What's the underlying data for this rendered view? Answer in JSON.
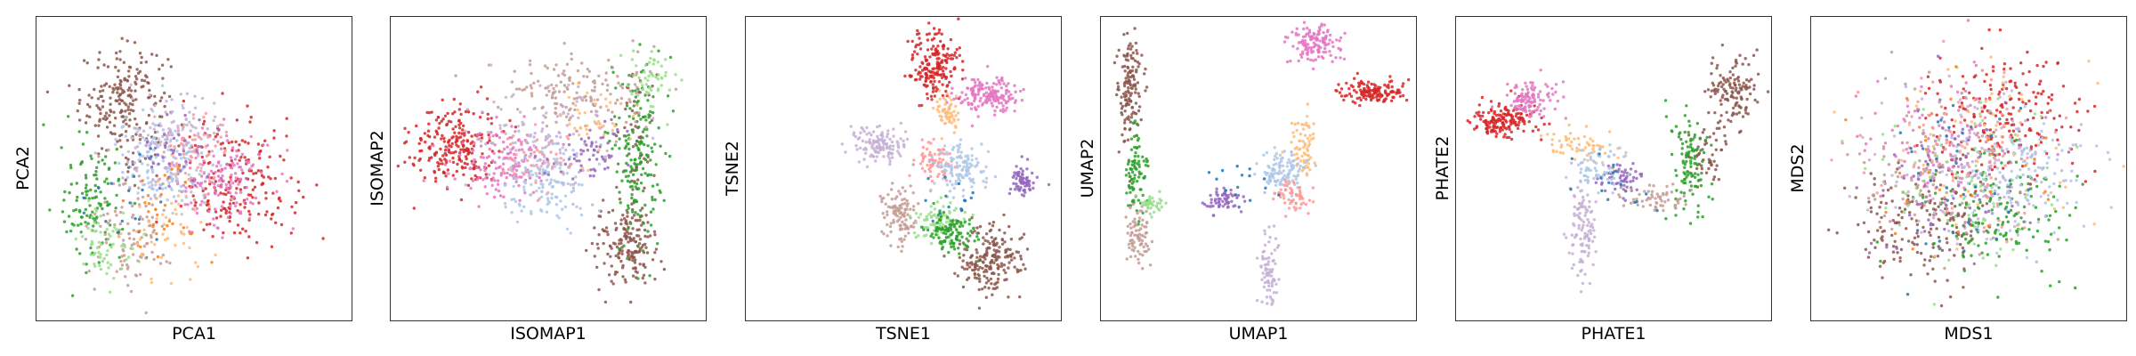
{
  "palette": {
    "c0": "#1f77b4",
    "c1": "#aec7e8",
    "c2": "#ff7f0e",
    "c3": "#ffbb78",
    "c4": "#2ca02c",
    "c5": "#98df8a",
    "c6": "#d62728",
    "c7": "#ff9896",
    "c8": "#9467bd",
    "c9": "#c5b0d5",
    "c10": "#8c564b",
    "c11": "#c49c94",
    "c12": "#e377c2"
  },
  "chart_data": [
    {
      "type": "scatter",
      "title": "",
      "xlabel": "PCA1",
      "ylabel": "PCA2",
      "xlim": [
        0,
        1
      ],
      "ylim": [
        0,
        1
      ],
      "grid": false,
      "ticks": false,
      "series": [
        {
          "color": "c10",
          "clusters": [
            {
              "x": 0.28,
              "y": 0.72,
              "sx": 0.07,
              "sy": 0.09,
              "n": 220
            }
          ]
        },
        {
          "color": "c6",
          "clusters": [
            {
              "x": 0.64,
              "y": 0.45,
              "sx": 0.09,
              "sy": 0.1,
              "n": 200
            }
          ]
        },
        {
          "color": "c12",
          "clusters": [
            {
              "x": 0.58,
              "y": 0.47,
              "sx": 0.08,
              "sy": 0.08,
              "n": 150
            }
          ]
        },
        {
          "color": "c1",
          "clusters": [
            {
              "x": 0.4,
              "y": 0.52,
              "sx": 0.07,
              "sy": 0.08,
              "n": 160
            }
          ]
        },
        {
          "color": "c9",
          "clusters": [
            {
              "x": 0.44,
              "y": 0.58,
              "sx": 0.08,
              "sy": 0.09,
              "n": 120
            }
          ]
        },
        {
          "color": "c4",
          "clusters": [
            {
              "x": 0.18,
              "y": 0.38,
              "sx": 0.05,
              "sy": 0.1,
              "n": 120
            }
          ]
        },
        {
          "color": "c11",
          "clusters": [
            {
              "x": 0.3,
              "y": 0.3,
              "sx": 0.06,
              "sy": 0.1,
              "n": 110
            }
          ]
        },
        {
          "color": "c5",
          "clusters": [
            {
              "x": 0.22,
              "y": 0.26,
              "sx": 0.05,
              "sy": 0.07,
              "n": 60
            }
          ]
        },
        {
          "color": "c3",
          "clusters": [
            {
              "x": 0.42,
              "y": 0.3,
              "sx": 0.07,
              "sy": 0.08,
              "n": 50
            }
          ]
        },
        {
          "color": "c7",
          "clusters": [
            {
              "x": 0.5,
              "y": 0.55,
              "sx": 0.06,
              "sy": 0.06,
              "n": 50
            }
          ]
        },
        {
          "color": "c8",
          "clusters": [
            {
              "x": 0.45,
              "y": 0.55,
              "sx": 0.06,
              "sy": 0.06,
              "n": 40
            }
          ]
        },
        {
          "color": "c0",
          "clusters": [
            {
              "x": 0.3,
              "y": 0.4,
              "sx": 0.06,
              "sy": 0.08,
              "n": 20
            }
          ]
        },
        {
          "color": "c2",
          "clusters": [
            {
              "x": 0.4,
              "y": 0.35,
              "sx": 0.07,
              "sy": 0.08,
              "n": 30
            }
          ]
        }
      ]
    },
    {
      "type": "scatter",
      "title": "",
      "xlabel": "ISOMAP1",
      "ylabel": "ISOMAP2",
      "xlim": [
        0,
        1
      ],
      "ylim": [
        0,
        1
      ],
      "grid": false,
      "ticks": false,
      "series": [
        {
          "color": "c6",
          "clusters": [
            {
              "x": 0.2,
              "y": 0.58,
              "sx": 0.07,
              "sy": 0.07,
              "n": 230
            }
          ]
        },
        {
          "color": "c12",
          "clusters": [
            {
              "x": 0.35,
              "y": 0.52,
              "sx": 0.08,
              "sy": 0.06,
              "n": 150
            }
          ]
        },
        {
          "color": "c10",
          "clusters": [
            {
              "x": 0.74,
              "y": 0.25,
              "sx": 0.05,
              "sy": 0.06,
              "n": 170
            },
            {
              "x": 0.78,
              "y": 0.55,
              "sx": 0.03,
              "sy": 0.14,
              "n": 60
            }
          ]
        },
        {
          "color": "c4",
          "clusters": [
            {
              "x": 0.78,
              "y": 0.55,
              "sx": 0.04,
              "sy": 0.15,
              "n": 180
            }
          ]
        },
        {
          "color": "c11",
          "clusters": [
            {
              "x": 0.6,
              "y": 0.75,
              "sx": 0.12,
              "sy": 0.06,
              "n": 150
            }
          ]
        },
        {
          "color": "c1",
          "clusters": [
            {
              "x": 0.5,
              "y": 0.45,
              "sx": 0.07,
              "sy": 0.07,
              "n": 140
            }
          ]
        },
        {
          "color": "c9",
          "clusters": [
            {
              "x": 0.5,
              "y": 0.6,
              "sx": 0.12,
              "sy": 0.09,
              "n": 120
            }
          ]
        },
        {
          "color": "c8",
          "clusters": [
            {
              "x": 0.62,
              "y": 0.55,
              "sx": 0.06,
              "sy": 0.05,
              "n": 60
            }
          ]
        },
        {
          "color": "c5",
          "clusters": [
            {
              "x": 0.82,
              "y": 0.8,
              "sx": 0.04,
              "sy": 0.05,
              "n": 50
            }
          ]
        },
        {
          "color": "c3",
          "clusters": [
            {
              "x": 0.65,
              "y": 0.65,
              "sx": 0.06,
              "sy": 0.06,
              "n": 40
            }
          ]
        },
        {
          "color": "c7",
          "clusters": [
            {
              "x": 0.45,
              "y": 0.55,
              "sx": 0.06,
              "sy": 0.05,
              "n": 40
            }
          ]
        }
      ]
    },
    {
      "type": "scatter",
      "title": "",
      "xlabel": "TSNE1",
      "ylabel": "TSNE2",
      "xlim": [
        0,
        1
      ],
      "ylim": [
        0,
        1
      ],
      "grid": false,
      "ticks": false,
      "series": [
        {
          "color": "c6",
          "clusters": [
            {
              "x": 0.6,
              "y": 0.84,
              "sx": 0.04,
              "sy": 0.06,
              "n": 200
            }
          ]
        },
        {
          "color": "c12",
          "clusters": [
            {
              "x": 0.77,
              "y": 0.74,
              "sx": 0.05,
              "sy": 0.03,
              "n": 170
            }
          ]
        },
        {
          "color": "c9",
          "clusters": [
            {
              "x": 0.42,
              "y": 0.58,
              "sx": 0.04,
              "sy": 0.03,
              "n": 130
            }
          ]
        },
        {
          "color": "c3",
          "clusters": [
            {
              "x": 0.64,
              "y": 0.68,
              "sx": 0.02,
              "sy": 0.03,
              "n": 60
            }
          ]
        },
        {
          "color": "c7",
          "clusters": [
            {
              "x": 0.59,
              "y": 0.53,
              "sx": 0.03,
              "sy": 0.03,
              "n": 70
            }
          ]
        },
        {
          "color": "c1",
          "clusters": [
            {
              "x": 0.68,
              "y": 0.5,
              "sx": 0.04,
              "sy": 0.04,
              "n": 120
            }
          ]
        },
        {
          "color": "c8",
          "clusters": [
            {
              "x": 0.88,
              "y": 0.46,
              "sx": 0.02,
              "sy": 0.03,
              "n": 70
            }
          ]
        },
        {
          "color": "c11",
          "clusters": [
            {
              "x": 0.49,
              "y": 0.35,
              "sx": 0.03,
              "sy": 0.05,
              "n": 110
            }
          ]
        },
        {
          "color": "c5",
          "clusters": [
            {
              "x": 0.61,
              "y": 0.33,
              "sx": 0.04,
              "sy": 0.03,
              "n": 90
            }
          ]
        },
        {
          "color": "c4",
          "clusters": [
            {
              "x": 0.65,
              "y": 0.29,
              "sx": 0.04,
              "sy": 0.03,
              "n": 110
            }
          ]
        },
        {
          "color": "c10",
          "clusters": [
            {
              "x": 0.78,
              "y": 0.2,
              "sx": 0.05,
              "sy": 0.06,
              "n": 200
            }
          ]
        },
        {
          "color": "c0",
          "clusters": [
            {
              "x": 0.65,
              "y": 0.4,
              "sx": 0.05,
              "sy": 0.05,
              "n": 15
            }
          ]
        }
      ]
    },
    {
      "type": "scatter",
      "title": "",
      "xlabel": "UMAP1",
      "ylabel": "UMAP2",
      "xlim": [
        0,
        1
      ],
      "ylim": [
        0,
        1
      ],
      "grid": false,
      "ticks": false,
      "series": [
        {
          "color": "c10",
          "clusters": [
            {
              "x": 0.09,
              "y": 0.76,
              "sx": 0.02,
              "sy": 0.09,
              "n": 140
            }
          ]
        },
        {
          "color": "c4",
          "clusters": [
            {
              "x": 0.11,
              "y": 0.48,
              "sx": 0.015,
              "sy": 0.07,
              "n": 90
            }
          ]
        },
        {
          "color": "c11",
          "clusters": [
            {
              "x": 0.12,
              "y": 0.28,
              "sx": 0.02,
              "sy": 0.05,
              "n": 80
            }
          ]
        },
        {
          "color": "c5",
          "clusters": [
            {
              "x": 0.16,
              "y": 0.38,
              "sx": 0.02,
              "sy": 0.02,
              "n": 40
            }
          ]
        },
        {
          "color": "c12",
          "clusters": [
            {
              "x": 0.68,
              "y": 0.91,
              "sx": 0.04,
              "sy": 0.03,
              "n": 130
            }
          ]
        },
        {
          "color": "c6",
          "clusters": [
            {
              "x": 0.86,
              "y": 0.75,
              "sx": 0.05,
              "sy": 0.02,
              "n": 140
            }
          ]
        },
        {
          "color": "c3",
          "clusters": [
            {
              "x": 0.64,
              "y": 0.58,
              "sx": 0.02,
              "sy": 0.07,
              "n": 70
            }
          ]
        },
        {
          "color": "c1",
          "clusters": [
            {
              "x": 0.57,
              "y": 0.49,
              "sx": 0.04,
              "sy": 0.03,
              "n": 110
            }
          ]
        },
        {
          "color": "c7",
          "clusters": [
            {
              "x": 0.61,
              "y": 0.4,
              "sx": 0.03,
              "sy": 0.03,
              "n": 60
            }
          ]
        },
        {
          "color": "c8",
          "clusters": [
            {
              "x": 0.38,
              "y": 0.4,
              "sx": 0.03,
              "sy": 0.02,
              "n": 60
            }
          ]
        },
        {
          "color": "c9",
          "clusters": [
            {
              "x": 0.53,
              "y": 0.16,
              "sx": 0.015,
              "sy": 0.07,
              "n": 80
            }
          ]
        },
        {
          "color": "c0",
          "clusters": [
            {
              "x": 0.45,
              "y": 0.45,
              "sx": 0.08,
              "sy": 0.04,
              "n": 15
            }
          ]
        }
      ]
    },
    {
      "type": "scatter",
      "title": "",
      "xlabel": "PHATE1",
      "ylabel": "PHATE2",
      "xlim": [
        0,
        1
      ],
      "ylim": [
        0,
        1
      ],
      "grid": false,
      "ticks": false,
      "series": [
        {
          "color": "c6",
          "clusters": [
            {
              "x": 0.15,
              "y": 0.66,
              "sx": 0.05,
              "sy": 0.03,
              "n": 170
            }
          ]
        },
        {
          "color": "c12",
          "clusters": [
            {
              "x": 0.23,
              "y": 0.73,
              "sx": 0.04,
              "sy": 0.03,
              "n": 110
            }
          ]
        },
        {
          "color": "c10",
          "clusters": [
            {
              "x": 0.88,
              "y": 0.76,
              "sx": 0.04,
              "sy": 0.06,
              "n": 130
            },
            {
              "x": 0.8,
              "y": 0.55,
              "sx": 0.03,
              "sy": 0.05,
              "n": 50
            }
          ]
        },
        {
          "color": "c4",
          "clusters": [
            {
              "x": 0.74,
              "y": 0.52,
              "sx": 0.03,
              "sy": 0.08,
              "n": 110
            }
          ]
        },
        {
          "color": "c3",
          "clusters": [
            {
              "x": 0.38,
              "y": 0.57,
              "sx": 0.06,
              "sy": 0.03,
              "n": 60
            }
          ]
        },
        {
          "color": "c8",
          "clusters": [
            {
              "x": 0.52,
              "y": 0.47,
              "sx": 0.03,
              "sy": 0.03,
              "n": 60
            }
          ]
        },
        {
          "color": "c9",
          "clusters": [
            {
              "x": 0.4,
              "y": 0.3,
              "sx": 0.02,
              "sy": 0.09,
              "n": 110
            }
          ]
        },
        {
          "color": "c1",
          "clusters": [
            {
              "x": 0.45,
              "y": 0.5,
              "sx": 0.04,
              "sy": 0.04,
              "n": 60
            }
          ]
        },
        {
          "color": "c11",
          "clusters": [
            {
              "x": 0.64,
              "y": 0.4,
              "sx": 0.06,
              "sy": 0.02,
              "n": 60
            }
          ]
        },
        {
          "color": "c0",
          "clusters": [
            {
              "x": 0.5,
              "y": 0.45,
              "sx": 0.08,
              "sy": 0.05,
              "n": 15
            }
          ]
        }
      ]
    },
    {
      "type": "scatter",
      "title": "",
      "xlabel": "MDS1",
      "ylabel": "MDS2",
      "xlim": [
        0,
        1
      ],
      "ylim": [
        0,
        1
      ],
      "grid": false,
      "ticks": false,
      "series": [
        {
          "color": "c6",
          "clusters": [
            {
              "x": 0.6,
              "y": 0.68,
              "sx": 0.12,
              "sy": 0.1,
              "n": 200
            }
          ]
        },
        {
          "color": "c10",
          "clusters": [
            {
              "x": 0.35,
              "y": 0.35,
              "sx": 0.11,
              "sy": 0.1,
              "n": 200
            }
          ]
        },
        {
          "color": "c4",
          "clusters": [
            {
              "x": 0.6,
              "y": 0.35,
              "sx": 0.11,
              "sy": 0.1,
              "n": 150
            }
          ]
        },
        {
          "color": "c1",
          "clusters": [
            {
              "x": 0.62,
              "y": 0.48,
              "sx": 0.12,
              "sy": 0.1,
              "n": 150
            }
          ]
        },
        {
          "color": "c12",
          "clusters": [
            {
              "x": 0.42,
              "y": 0.58,
              "sx": 0.12,
              "sy": 0.12,
              "n": 120
            }
          ]
        },
        {
          "color": "c9",
          "clusters": [
            {
              "x": 0.5,
              "y": 0.5,
              "sx": 0.15,
              "sy": 0.14,
              "n": 120
            }
          ]
        },
        {
          "color": "c11",
          "clusters": [
            {
              "x": 0.4,
              "y": 0.5,
              "sx": 0.14,
              "sy": 0.14,
              "n": 100
            }
          ]
        },
        {
          "color": "c7",
          "clusters": [
            {
              "x": 0.5,
              "y": 0.55,
              "sx": 0.15,
              "sy": 0.14,
              "n": 80
            }
          ]
        },
        {
          "color": "c5",
          "clusters": [
            {
              "x": 0.5,
              "y": 0.45,
              "sx": 0.15,
              "sy": 0.14,
              "n": 80
            }
          ]
        },
        {
          "color": "c3",
          "clusters": [
            {
              "x": 0.55,
              "y": 0.6,
              "sx": 0.15,
              "sy": 0.14,
              "n": 60
            }
          ]
        },
        {
          "color": "c8",
          "clusters": [
            {
              "x": 0.45,
              "y": 0.45,
              "sx": 0.15,
              "sy": 0.14,
              "n": 60
            }
          ]
        },
        {
          "color": "c0",
          "clusters": [
            {
              "x": 0.5,
              "y": 0.5,
              "sx": 0.15,
              "sy": 0.14,
              "n": 40
            }
          ]
        },
        {
          "color": "c2",
          "clusters": [
            {
              "x": 0.5,
              "y": 0.5,
              "sx": 0.15,
              "sy": 0.14,
              "n": 30
            }
          ]
        }
      ]
    }
  ]
}
